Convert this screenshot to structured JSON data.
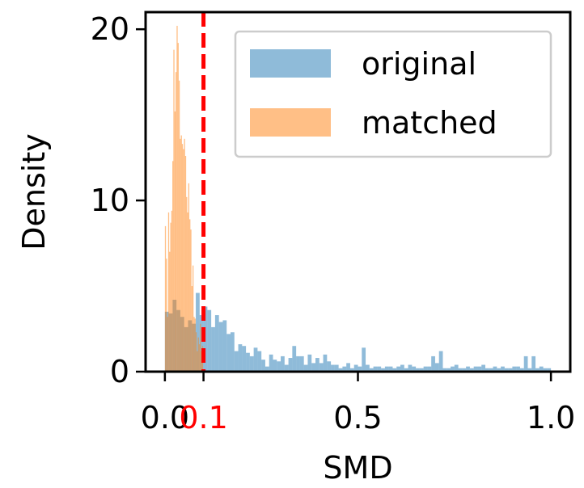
{
  "chart_data": {
    "type": "histogram",
    "xlabel": "SMD",
    "ylabel": "Density",
    "xlim": [
      -0.05,
      1.05
    ],
    "ylim": [
      0,
      21
    ],
    "xticks": [
      {
        "value": 0.0,
        "label": "0.0",
        "color": "#000000"
      },
      {
        "value": 0.1,
        "label": "0.1",
        "color": "#ff0000"
      },
      {
        "value": 0.5,
        "label": "0.5",
        "color": "#000000"
      },
      {
        "value": 1.0,
        "label": "1.0",
        "color": "#000000"
      }
    ],
    "yticks": [
      {
        "value": 0,
        "label": "0"
      },
      {
        "value": 10,
        "label": "10"
      },
      {
        "value": 20,
        "label": "20"
      }
    ],
    "threshold": {
      "x": 0.1,
      "color": "#ff0000",
      "style": "dashed"
    },
    "legend_placement": "upper right",
    "series": [
      {
        "name": "original",
        "color": "#1f77b4",
        "alpha": 0.5,
        "bin_width": 0.01,
        "bins": [
          [
            0.0,
            3.5
          ],
          [
            0.01,
            3.4
          ],
          [
            0.02,
            4.2
          ],
          [
            0.03,
            3.6
          ],
          [
            0.04,
            3.2
          ],
          [
            0.05,
            2.6
          ],
          [
            0.06,
            3.0
          ],
          [
            0.07,
            2.8
          ],
          [
            0.08,
            4.6
          ],
          [
            0.09,
            3.3
          ],
          [
            0.1,
            3.8
          ],
          [
            0.11,
            3.6
          ],
          [
            0.12,
            2.6
          ],
          [
            0.13,
            3.3
          ],
          [
            0.14,
            2.9
          ],
          [
            0.15,
            3.0
          ],
          [
            0.16,
            2.2
          ],
          [
            0.17,
            2.3
          ],
          [
            0.18,
            1.2
          ],
          [
            0.19,
            1.6
          ],
          [
            0.2,
            1.5
          ],
          [
            0.21,
            1.1
          ],
          [
            0.22,
            0.9
          ],
          [
            0.23,
            1.4
          ],
          [
            0.24,
            1.2
          ],
          [
            0.25,
            0.7
          ],
          [
            0.26,
            0.3
          ],
          [
            0.27,
            1.0
          ],
          [
            0.28,
            0.7
          ],
          [
            0.29,
            0.6
          ],
          [
            0.3,
            0.9
          ],
          [
            0.31,
            0.4
          ],
          [
            0.32,
            0.8
          ],
          [
            0.33,
            1.5
          ],
          [
            0.34,
            0.9
          ],
          [
            0.35,
            0.9
          ],
          [
            0.36,
            0.4
          ],
          [
            0.37,
            1.0
          ],
          [
            0.38,
            0.5
          ],
          [
            0.39,
            0.8
          ],
          [
            0.4,
            0.5
          ],
          [
            0.41,
            1.0
          ],
          [
            0.42,
            0.6
          ],
          [
            0.43,
            0.4
          ],
          [
            0.44,
            0.4
          ],
          [
            0.45,
            0.2
          ],
          [
            0.46,
            0.3
          ],
          [
            0.47,
            0.5
          ],
          [
            0.48,
            0.2
          ],
          [
            0.49,
            0.4
          ],
          [
            0.5,
            0.3
          ],
          [
            0.51,
            1.4
          ],
          [
            0.52,
            0.4
          ],
          [
            0.53,
            0.2
          ],
          [
            0.54,
            0.3
          ],
          [
            0.55,
            0.3
          ],
          [
            0.56,
            0.2
          ],
          [
            0.57,
            0.3
          ],
          [
            0.58,
            0.3
          ],
          [
            0.59,
            0.2
          ],
          [
            0.6,
            0.3
          ],
          [
            0.61,
            0.4
          ],
          [
            0.62,
            0.2
          ],
          [
            0.63,
            0.4
          ],
          [
            0.64,
            0.3
          ],
          [
            0.65,
            0.2
          ],
          [
            0.66,
            0.2
          ],
          [
            0.67,
            0.3
          ],
          [
            0.68,
            0.3
          ],
          [
            0.69,
            0.9
          ],
          [
            0.7,
            0.5
          ],
          [
            0.71,
            1.2
          ],
          [
            0.72,
            0.2
          ],
          [
            0.73,
            0.2
          ],
          [
            0.74,
            0.3
          ],
          [
            0.75,
            0.4
          ],
          [
            0.76,
            0.2
          ],
          [
            0.77,
            0.2
          ],
          [
            0.78,
            0.3
          ],
          [
            0.79,
            0.2
          ],
          [
            0.8,
            0.3
          ],
          [
            0.81,
            0.3
          ],
          [
            0.82,
            0.4
          ],
          [
            0.83,
            0.2
          ],
          [
            0.84,
            0.2
          ],
          [
            0.85,
            0.3
          ],
          [
            0.86,
            0.2
          ],
          [
            0.87,
            0.3
          ],
          [
            0.88,
            0.2
          ],
          [
            0.89,
            0.2
          ],
          [
            0.9,
            0.3
          ],
          [
            0.91,
            0.3
          ],
          [
            0.92,
            0.2
          ],
          [
            0.93,
            0.9
          ],
          [
            0.94,
            0.2
          ],
          [
            0.95,
            0.9
          ],
          [
            0.96,
            0.2
          ],
          [
            0.97,
            0.3
          ],
          [
            0.98,
            0.2
          ],
          [
            0.99,
            0.2
          ]
        ]
      },
      {
        "name": "matched",
        "color": "#ff7f0e",
        "alpha": 0.5,
        "bin_width": 0.00275,
        "bins": [
          [
            0.0,
            8.5
          ],
          [
            0.0028,
            6.6
          ],
          [
            0.0055,
            3.2
          ],
          [
            0.0083,
            9.3
          ],
          [
            0.011,
            7.0
          ],
          [
            0.0138,
            8.7
          ],
          [
            0.0165,
            9.4
          ],
          [
            0.0193,
            12.3
          ],
          [
            0.022,
            18.8
          ],
          [
            0.0248,
            15.2
          ],
          [
            0.0275,
            17.5
          ],
          [
            0.0303,
            20.2
          ],
          [
            0.033,
            19.2
          ],
          [
            0.0358,
            17.0
          ],
          [
            0.0385,
            13.6
          ],
          [
            0.0413,
            13.8
          ],
          [
            0.044,
            13.3
          ],
          [
            0.0468,
            13.0
          ],
          [
            0.0495,
            13.6
          ],
          [
            0.0523,
            12.6
          ],
          [
            0.055,
            10.2
          ],
          [
            0.0578,
            9.3
          ],
          [
            0.0605,
            11.0
          ],
          [
            0.0633,
            8.9
          ],
          [
            0.066,
            8.3
          ],
          [
            0.0688,
            5.0
          ],
          [
            0.0715,
            6.2
          ],
          [
            0.0743,
            3.2
          ],
          [
            0.077,
            3.1
          ],
          [
            0.0798,
            2.3
          ],
          [
            0.0825,
            1.2
          ],
          [
            0.0853,
            2.0
          ],
          [
            0.088,
            1.6
          ],
          [
            0.0908,
            2.8
          ],
          [
            0.0935,
            1.2
          ],
          [
            0.0963,
            1.5
          ]
        ]
      }
    ]
  }
}
